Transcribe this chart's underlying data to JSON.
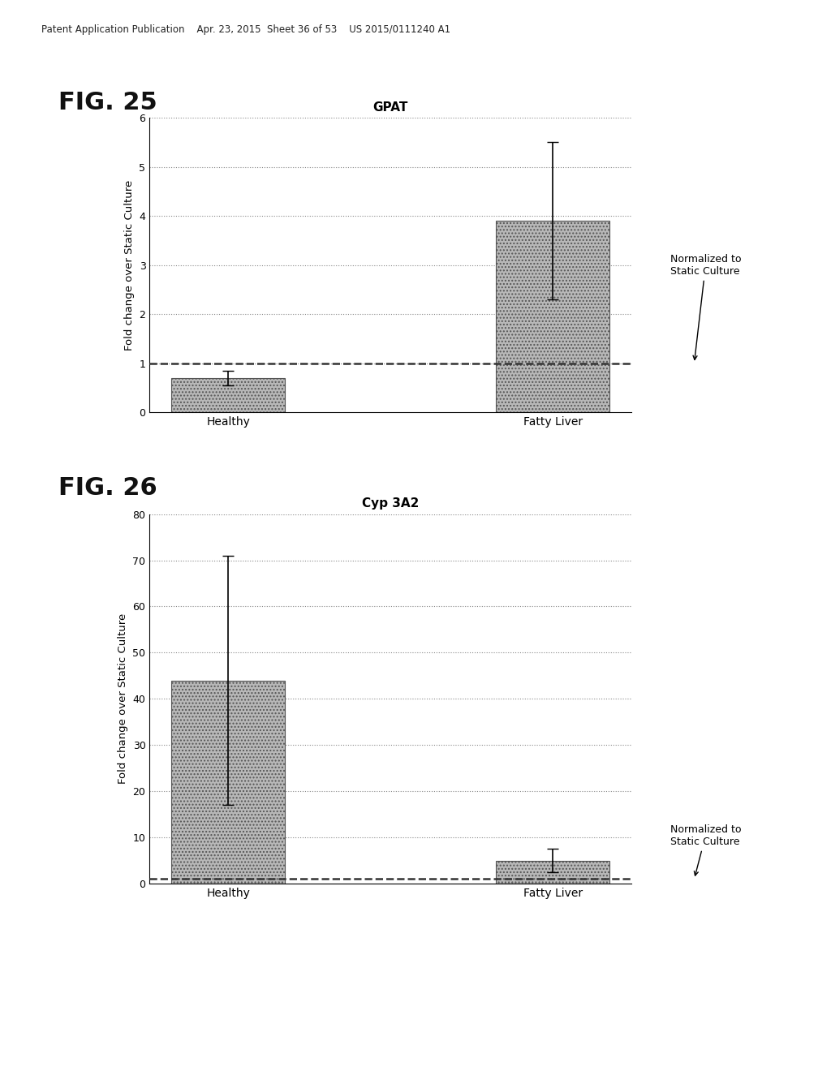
{
  "fig25": {
    "title": "GPAT",
    "categories": [
      "Healthy",
      "Fatty Liver"
    ],
    "values": [
      0.7,
      3.9
    ],
    "errors": [
      0.15,
      1.6
    ],
    "bar_color": "#b8b8b8",
    "bar_hatch": "....",
    "dashed_line_y": 1.0,
    "ylim": [
      0,
      6
    ],
    "yticks": [
      0,
      1,
      2,
      3,
      4,
      5,
      6
    ],
    "ylabel": "Fold change over Static Culture",
    "annotation_text": "Normalized to\nStatic Culture"
  },
  "fig26": {
    "title": "Cyp 3A2",
    "categories": [
      "Healthy",
      "Fatty Liver"
    ],
    "values": [
      44,
      5
    ],
    "errors": [
      27,
      2.5
    ],
    "bar_color": "#b8b8b8",
    "bar_hatch": "....",
    "dashed_line_y": 1.0,
    "ylim": [
      0,
      80
    ],
    "yticks": [
      0,
      10,
      20,
      30,
      40,
      50,
      60,
      70,
      80
    ],
    "ylabel": "Fold change over Static Culture",
    "annotation_text": "Normalized to\nStatic Culture"
  },
  "header_text": "Patent Application Publication    Apr. 23, 2015  Sheet 36 of 53    US 2015/0111240 A1",
  "fig25_label": "FIG. 25",
  "fig26_label": "FIG. 26",
  "background_color": "#ffffff",
  "dotted_grid_color": "#888888",
  "dashed_line_color": "#333333"
}
